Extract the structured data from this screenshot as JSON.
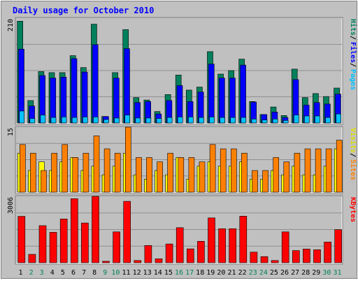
{
  "chart_data": {
    "type": "bar",
    "title": "Daily usage for October 2010",
    "categories": [
      "1",
      "2",
      "3",
      "4",
      "5",
      "6",
      "7",
      "8",
      "9",
      "10",
      "11",
      "12",
      "13",
      "14",
      "15",
      "16",
      "17",
      "18",
      "19",
      "20",
      "21",
      "22",
      "23",
      "24",
      "25",
      "26",
      "27",
      "28",
      "29",
      "30",
      "31"
    ],
    "weekend_days": [
      "2",
      "3",
      "9",
      "10",
      "16",
      "17",
      "23",
      "24",
      "30",
      "31"
    ],
    "panels": [
      {
        "key": "top",
        "y_max": 210,
        "y_max_label": "210",
        "ylabels": [
          {
            "text": "Hits",
            "color": "#00805c"
          },
          {
            "text": "Files",
            "color": "#0000ff"
          },
          {
            "text": "Pages",
            "color": "#00c0ff"
          }
        ],
        "series": [
          {
            "name": "Hits",
            "color": "#00805c",
            "values": [
              204,
              45,
              103,
              101,
              101,
              135,
              111,
              198,
              13,
              101,
              187,
              51,
              46,
              23,
              57,
              96,
              66,
              72,
              143,
              98,
              105,
              128,
              43,
              17,
              32,
              15,
              108,
              51,
              59,
              53,
              70
            ]
          },
          {
            "name": "Files",
            "color": "#0000ff",
            "values": [
              148,
              34,
              95,
              90,
              92,
              129,
              102,
              157,
              13,
              90,
              149,
              41,
              43,
              18,
              45,
              75,
              43,
              62,
              118,
              90,
              90,
              116,
              42,
              17,
              22,
              11,
              87,
              36,
              41,
              38,
              58
            ]
          },
          {
            "name": "Pages",
            "color": "#00c0ff",
            "values": [
              24,
              9,
              16,
              11,
              12,
              11,
              12,
              12,
              7,
              10,
              16,
              10,
              10,
              9,
              11,
              12,
              12,
              11,
              12,
              11,
              11,
              11,
              8,
              6,
              8,
              5,
              16,
              14,
              14,
              11,
              18
            ]
          }
        ]
      },
      {
        "key": "middle",
        "y_max": 15,
        "y_max_label": "15",
        "ylabels": [
          {
            "text": "Visits",
            "color": "#e0e000"
          },
          {
            "text": "Sites",
            "color": "#ff8000"
          }
        ],
        "series": [
          {
            "name": "Visits",
            "color": "#ffff00",
            "values": [
              9,
              5,
              7,
              5,
              7,
              8,
              5,
              6,
              4,
              6,
              9,
              4,
              3,
              5,
              4,
              8,
              3,
              6,
              7,
              6,
              6,
              7,
              3,
              3,
              5,
              4,
              6,
              4,
              4,
              6,
              10
            ]
          },
          {
            "name": "Sites",
            "color": "#ff8000",
            "values": [
              11,
              9,
              5,
              9,
              11,
              8,
              9,
              13,
              10,
              9,
              15,
              8,
              8,
              7,
              9,
              8,
              8,
              7,
              11,
              10,
              10,
              9,
              5,
              5,
              8,
              7,
              9,
              10,
              10,
              10,
              12
            ]
          }
        ]
      },
      {
        "key": "bottom",
        "y_max": 3006,
        "y_max_label": "3006",
        "ylabels": [
          {
            "text": "KBytes",
            "color": "#ff0000"
          }
        ],
        "series": [
          {
            "name": "KBytes",
            "color": "#ff0000",
            "values": [
              2100,
              380,
              1680,
              1380,
              1980,
              2900,
              1800,
              3006,
              65,
              1400,
              2780,
              100,
              780,
              180,
              850,
              1590,
              630,
              970,
              2030,
              1540,
              1540,
              2110,
              480,
              280,
              100,
              1400,
              550,
              620,
              590,
              940,
              1500
            ]
          }
        ]
      }
    ],
    "colors": {
      "background": "#c0c0c0",
      "border": "#8c8c8c",
      "title": "#0000ff",
      "weekday_label": "#000000",
      "weekend_label": "#00805c",
      "gridline": "#808080",
      "panel_bg": "#c0c0c0"
    }
  }
}
